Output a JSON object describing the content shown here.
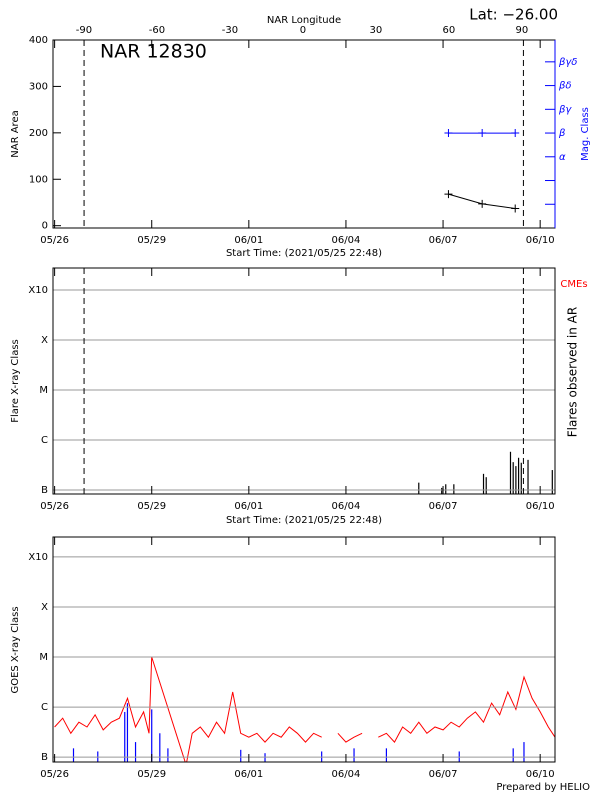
{
  "chart_data": [
    {
      "type": "line",
      "title": "NAR 12830",
      "subtitle": "Lat: −26.00",
      "xlabel": "Start Time: (2021/05/25 22:48)",
      "ylabel": "NAR Area",
      "y2label": "Mag. Class",
      "x2label": "NAR Longitude",
      "xlim": [
        "2021-05-25 22:48",
        "2021-06-10 11:00"
      ],
      "xticks": [
        {
          "value": "2021-05-26 00:00",
          "label": "05/26"
        },
        {
          "value": "2021-05-29 00:00",
          "label": "05/29"
        },
        {
          "value": "2021-06-01 00:00",
          "label": "06/01"
        },
        {
          "value": "2021-06-04 00:00",
          "label": "06/04"
        },
        {
          "value": "2021-06-07 00:00",
          "label": "06/07"
        },
        {
          "value": "2021-06-10 00:00",
          "label": "06/10"
        }
      ],
      "x2lim": [
        -102.7,
        103.6
      ],
      "x2ticks": [
        -90,
        -60,
        -30,
        0,
        30,
        60,
        90
      ],
      "ylim": [
        -5,
        400
      ],
      "yticks": [
        0,
        100,
        200,
        300,
        400
      ],
      "y2lim": [
        0,
        7.92
      ],
      "y2ticks": [
        1,
        2,
        {
          "value": 3,
          "label": "α"
        },
        {
          "value": 4,
          "label": "β"
        },
        {
          "value": 5,
          "label": "βγ"
        },
        {
          "value": 6,
          "label": "βδ"
        },
        {
          "value": 7,
          "label": "βγδ"
        }
      ],
      "limb_lines": [
        "2021-05-26 21:50",
        "2021-06-09 11:35"
      ],
      "series": [
        {
          "color": "#000000",
          "x": [
            "2021-06-07 04:00",
            "2021-06-08 05:00",
            "2021-06-09 05:30"
          ],
          "values": [
            68,
            47,
            37
          ]
        },
        {
          "color": "#0000ff",
          "axis": "y2",
          "x": [
            "2021-06-07 04:00",
            "2021-06-08 05:00",
            "2021-06-09 05:30"
          ],
          "values": [
            4,
            4,
            4
          ]
        }
      ]
    },
    {
      "type": "spike",
      "xlabel": "Start Time: (2021/05/25 22:48)",
      "ylabel": "Flare X-ray Class",
      "y2label": "Flares observed in AR",
      "annotation": {
        "text": "CMEs",
        "color": "#ff0000"
      },
      "log_scale": true,
      "grid": true,
      "xlim": [
        "2021-05-25 22:48",
        "2021-06-10 11:00"
      ],
      "xticks": [
        {
          "value": "2021-05-26 00:00",
          "label": "05/26"
        },
        {
          "value": "2021-05-29 00:00",
          "label": "05/29"
        },
        {
          "value": "2021-06-01 00:00",
          "label": "06/01"
        },
        {
          "value": "2021-06-04 00:00",
          "label": "06/04"
        },
        {
          "value": "2021-06-07 00:00",
          "label": "06/07"
        },
        {
          "value": "2021-06-10 00:00",
          "label": "06/10"
        }
      ],
      "ylim": [
        8.3e-08,
        0.00275
      ],
      "yticks": [
        {
          "value": 1e-07,
          "label": "B"
        },
        {
          "value": 1e-06,
          "label": "C"
        },
        {
          "value": 1e-05,
          "label": "M"
        },
        {
          "value": 0.0001,
          "label": "X"
        },
        {
          "value": 0.001,
          "label": "X10"
        }
      ],
      "limb_lines": [
        "2021-05-26 21:50",
        "2021-06-09 11:35"
      ],
      "series": [
        {
          "color": "#000000",
          "type": "spike",
          "x": [
            "2021-06-06 06:00",
            "2021-06-06 23:00",
            "2021-06-07 02:00",
            "2021-06-07 08:00",
            "2021-06-08 06:00",
            "2021-06-08 08:00",
            "2021-06-09 02:00",
            "2021-06-09 04:00",
            "2021-06-09 06:00",
            "2021-06-09 08:00",
            "2021-06-09 10:00",
            "2021-06-09 15:00",
            "2021-06-10 09:00"
          ],
          "values": [
            1.4e-07,
            1.1e-07,
            1.3e-07,
            1.3e-07,
            2.1e-07,
            1.8e-07,
            5.8e-07,
            3.6e-07,
            3e-07,
            4.4e-07,
            3.5e-07,
            4e-07,
            2.5e-07
          ]
        }
      ]
    },
    {
      "type": "line",
      "ylabel": "GOES X-ray Class",
      "footer": "Prepared by HELIO",
      "log_scale": true,
      "grid": true,
      "xlim": [
        "2021-05-25 22:48",
        "2021-06-10 11:00"
      ],
      "xticks": [
        {
          "value": "2021-05-26 00:00",
          "label": "05/26"
        },
        {
          "value": "2021-05-29 00:00",
          "label": "05/29"
        },
        {
          "value": "2021-06-01 00:00",
          "label": "06/01"
        },
        {
          "value": "2021-06-04 00:00",
          "label": "06/04"
        },
        {
          "value": "2021-06-07 00:00",
          "label": "06/07"
        },
        {
          "value": "2021-06-10 00:00",
          "label": "06/10"
        }
      ],
      "ylim": [
        8e-08,
        0.0025
      ],
      "yticks": [
        {
          "value": 1e-07,
          "label": "B"
        },
        {
          "value": 1e-06,
          "label": "C"
        },
        {
          "value": 1e-05,
          "label": "M"
        },
        {
          "value": 0.0001,
          "label": "X"
        },
        {
          "value": 0.001,
          "label": "X10"
        }
      ],
      "series": [
        {
          "color": "#ff0000",
          "type": "line",
          "x": [
            "2021-05-26 00:00",
            "2021-05-26 06:00",
            "2021-05-26 12:00",
            "2021-05-26 18:00",
            "2021-05-27 00:00",
            "2021-05-27 06:00",
            "2021-05-27 12:00",
            "2021-05-27 18:00",
            "2021-05-28 00:00",
            "2021-05-28 06:00",
            "2021-05-28 12:00",
            "2021-05-28 18:00",
            "2021-05-28 22:00",
            "2021-05-29 00:00",
            "2021-05-30 01:30",
            "2021-05-30 06:00",
            "2021-05-30 12:00",
            "2021-05-30 18:00",
            "2021-05-31 00:00",
            "2021-05-31 06:00",
            "2021-05-31 12:00",
            "2021-05-31 18:00",
            "2021-06-01 00:00",
            "2021-06-01 06:00",
            "2021-06-01 12:00",
            "2021-06-01 18:00",
            "2021-06-02 00:00",
            "2021-06-02 06:00",
            "2021-06-02 12:00",
            "2021-06-02 18:00",
            "2021-06-03 00:00",
            "2021-06-03 06:00",
            "2021-06-03 12:00",
            "2021-06-03 18:00",
            "2021-06-04 00:00",
            "2021-06-04 06:00",
            "2021-06-04 12:00",
            "2021-06-04 18:00",
            "2021-06-05 00:00",
            "2021-06-05 06:00",
            "2021-06-05 12:00",
            "2021-06-05 18:00",
            "2021-06-06 00:00",
            "2021-06-06 06:00",
            "2021-06-06 12:00",
            "2021-06-06 18:00",
            "2021-06-07 00:00",
            "2021-06-07 06:00",
            "2021-06-07 12:00",
            "2021-06-07 18:00",
            "2021-06-08 00:00",
            "2021-06-08 06:00",
            "2021-06-08 12:00",
            "2021-06-08 18:00",
            "2021-06-09 00:00",
            "2021-06-09 06:00",
            "2021-06-09 12:00",
            "2021-06-09 18:00",
            "2021-06-10 00:00",
            "2021-06-10 06:00",
            "2021-06-10 11:00"
          ],
          "values": [
            4e-07,
            6e-07,
            3e-07,
            5e-07,
            4e-07,
            7e-07,
            3.5e-07,
            5e-07,
            6e-07,
            1.5e-06,
            4e-07,
            8e-07,
            3e-07,
            1e-05,
            7e-08,
            3e-07,
            4e-07,
            2.5e-07,
            5e-07,
            3e-07,
            2e-06,
            3e-07,
            2.5e-07,
            3e-07,
            2e-07,
            3e-07,
            2.5e-07,
            4e-07,
            3e-07,
            2e-07,
            3e-07,
            2.5e-07,
            null,
            3e-07,
            2e-07,
            2.5e-07,
            3e-07,
            null,
            2.5e-07,
            3e-07,
            2e-07,
            4e-07,
            3e-07,
            5e-07,
            3e-07,
            4e-07,
            3.5e-07,
            5e-07,
            4e-07,
            6e-07,
            8e-07,
            5e-07,
            1.2e-06,
            7e-07,
            2e-06,
            9e-07,
            4e-06,
            1.5e-06,
            8e-07,
            4e-07,
            2.5e-07
          ]
        },
        {
          "color": "#0000ff",
          "type": "spike",
          "x": [
            "2021-05-26 14:00",
            "2021-05-27 08:00",
            "2021-05-28 04:00",
            "2021-05-28 06:00",
            "2021-05-28 12:00",
            "2021-05-29 00:00",
            "2021-05-29 06:00",
            "2021-05-29 12:00",
            "2021-05-31 18:00",
            "2021-06-01 12:00",
            "2021-06-03 06:00",
            "2021-06-04 06:00",
            "2021-06-05 06:00",
            "2021-06-07 12:00",
            "2021-06-09 04:00",
            "2021-06-09 12:00"
          ],
          "values": [
            1.5e-07,
            1.3e-07,
            8e-07,
            1.2e-06,
            2e-07,
            9e-07,
            3e-07,
            1.5e-07,
            1.4e-07,
            1.2e-07,
            1.3e-07,
            1.5e-07,
            1.5e-07,
            1.3e-07,
            1.5e-07,
            2e-07
          ]
        }
      ]
    }
  ]
}
